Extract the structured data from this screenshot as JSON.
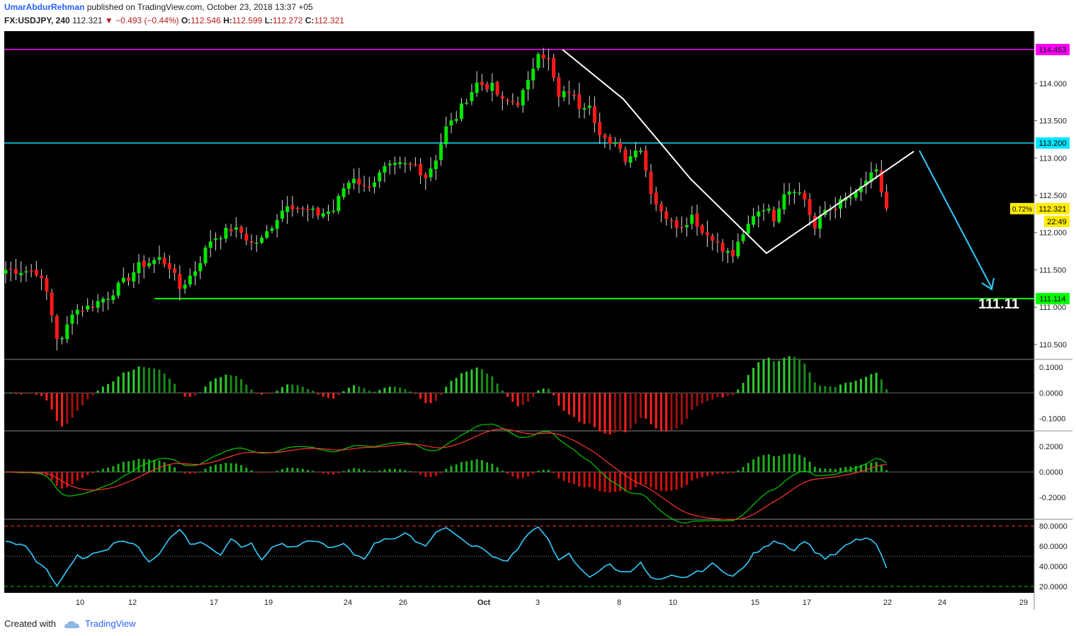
{
  "header": {
    "author": "UmarAbdurRehman",
    "published_text": "published on TradingView.com, October 23, 2018 13:37 +05",
    "symbol": "FX:USDJPY, 240",
    "last": "112.321",
    "change": "−0.493 (−0.44%)",
    "o_label": "O:",
    "o_val": "112.546",
    "h_label": "H:",
    "h_val": "112.599",
    "l_label": "L:",
    "l_val": "112.272",
    "c_label": "C:",
    "c_val": "112.321"
  },
  "footer": {
    "created_with": "Created with",
    "brand": "TradingView"
  },
  "colors": {
    "background": "#000000",
    "bull": "#00e600",
    "bear": "#ff1a1a",
    "resistance": "#ff00ff",
    "level_cyan": "#00e5ff",
    "target_green": "#00ff00",
    "histo_bull": "#1fae1f",
    "histo_bear": "#d01010",
    "rsi_line": "#33ccff",
    "rsi_band": "#ff3333",
    "rsi_low": "#00cc00"
  },
  "chart_data": [
    {
      "type": "candlestick",
      "title": "FX:USDJPY, 240",
      "ylim": [
        110.3,
        114.7
      ],
      "price_ticks": [
        "114.000",
        "113.500",
        "113.000",
        "112.500",
        "112.000",
        "111.500",
        "111.000",
        "110.500"
      ],
      "x_ticks": [
        "10",
        "12",
        "17",
        "19",
        "24",
        "26",
        "Oct",
        "3",
        "8",
        "10",
        "15",
        "17",
        "22",
        "24",
        "29"
      ],
      "levels": [
        {
          "value": 114.453,
          "label": "114.453",
          "color": "#ff00ff"
        },
        {
          "value": 113.2,
          "label": "113.200",
          "color": "#00e5ff"
        },
        {
          "value": 111.114,
          "label": "111.114",
          "color": "#00ff00"
        }
      ],
      "current": {
        "price": "112.321",
        "pct": "0.72%",
        "countdown": "22:49"
      },
      "target_label": "111.11",
      "close_anchors": [
        [
          0,
          111.5
        ],
        [
          6,
          111.48
        ],
        [
          8,
          111.2
        ],
        [
          10,
          110.6
        ],
        [
          11,
          110.55
        ],
        [
          13,
          110.95
        ],
        [
          16,
          111.0
        ],
        [
          20,
          111.15
        ],
        [
          24,
          111.4
        ],
        [
          26,
          111.55
        ],
        [
          30,
          111.65
        ],
        [
          32,
          111.55
        ],
        [
          34,
          111.25
        ],
        [
          37,
          111.5
        ],
        [
          40,
          111.9
        ],
        [
          44,
          112.05
        ],
        [
          46,
          112.0
        ],
        [
          48,
          111.85
        ],
        [
          50,
          111.9
        ],
        [
          52,
          112.1
        ],
        [
          55,
          112.4
        ],
        [
          58,
          112.3
        ],
        [
          61,
          112.25
        ],
        [
          64,
          112.3
        ],
        [
          66,
          112.6
        ],
        [
          68,
          112.75
        ],
        [
          70,
          112.6
        ],
        [
          72,
          112.7
        ],
        [
          74,
          112.85
        ],
        [
          77,
          112.9
        ],
        [
          80,
          112.9
        ],
        [
          82,
          112.75
        ],
        [
          84,
          113.0
        ],
        [
          86,
          113.4
        ],
        [
          88,
          113.55
        ],
        [
          90,
          113.8
        ],
        [
          92,
          114.0
        ],
        [
          95,
          113.95
        ],
        [
          97,
          113.75
        ],
        [
          100,
          113.75
        ],
        [
          102,
          114.0
        ],
        [
          104,
          114.45
        ],
        [
          106,
          114.3
        ],
        [
          108,
          113.8
        ],
        [
          110,
          113.9
        ],
        [
          112,
          113.7
        ],
        [
          114,
          113.75
        ],
        [
          116,
          113.3
        ],
        [
          118,
          113.15
        ],
        [
          119,
          113.25
        ],
        [
          121,
          113.0
        ],
        [
          124,
          113.15
        ],
        [
          126,
          112.55
        ],
        [
          128,
          112.25
        ],
        [
          130,
          112.2
        ],
        [
          132,
          112.05
        ],
        [
          134,
          112.25
        ],
        [
          136,
          112.0
        ],
        [
          138,
          111.95
        ],
        [
          140,
          111.75
        ],
        [
          142,
          111.7
        ],
        [
          144,
          111.95
        ],
        [
          146,
          112.25
        ],
        [
          148,
          112.35
        ],
        [
          150,
          112.2
        ],
        [
          152,
          112.55
        ],
        [
          154,
          112.6
        ],
        [
          156,
          112.45
        ],
        [
          158,
          112.05
        ],
        [
          160,
          112.3
        ],
        [
          162,
          112.35
        ],
        [
          164,
          112.45
        ],
        [
          166,
          112.5
        ],
        [
          168,
          112.7
        ],
        [
          170,
          112.8
        ],
        [
          171,
          112.55
        ],
        [
          172,
          112.32
        ]
      ]
    },
    {
      "type": "histogram",
      "title": "",
      "ylim": [
        -0.14,
        0.12
      ],
      "ticks": [
        "0.1000",
        "0.0000",
        "-0.1000"
      ]
    },
    {
      "type": "histogram+line",
      "title": "",
      "ylim": [
        -0.36,
        0.3
      ],
      "ticks": [
        "0.2000",
        "0.0000",
        "-0.2000"
      ]
    },
    {
      "type": "line",
      "title": "",
      "ylim": [
        15,
        84
      ],
      "ticks": [
        "80.0000",
        "60.0000",
        "40.0000",
        "20.0000"
      ],
      "bands": {
        "upper": 80,
        "mid": 50,
        "lower": 20
      },
      "value_anchors": [
        [
          0,
          64
        ],
        [
          4,
          60
        ],
        [
          6,
          45
        ],
        [
          8,
          38
        ],
        [
          9,
          28
        ],
        [
          10,
          21
        ],
        [
          12,
          35
        ],
        [
          14,
          50
        ],
        [
          16,
          48
        ],
        [
          18,
          55
        ],
        [
          20,
          58
        ],
        [
          22,
          66
        ],
        [
          24,
          64
        ],
        [
          26,
          58
        ],
        [
          28,
          45
        ],
        [
          30,
          52
        ],
        [
          32,
          68
        ],
        [
          34,
          78
        ],
        [
          36,
          62
        ],
        [
          38,
          64
        ],
        [
          40,
          58
        ],
        [
          42,
          52
        ],
        [
          44,
          68
        ],
        [
          46,
          60
        ],
        [
          48,
          64
        ],
        [
          50,
          45
        ],
        [
          52,
          60
        ],
        [
          54,
          62
        ],
        [
          56,
          58
        ],
        [
          58,
          62
        ],
        [
          60,
          66
        ],
        [
          62,
          62
        ],
        [
          64,
          58
        ],
        [
          66,
          62
        ],
        [
          68,
          52
        ],
        [
          70,
          48
        ],
        [
          72,
          62
        ],
        [
          74,
          68
        ],
        [
          76,
          68
        ],
        [
          78,
          72
        ],
        [
          80,
          66
        ],
        [
          82,
          60
        ],
        [
          84,
          75
        ],
        [
          86,
          78
        ],
        [
          88,
          72
        ],
        [
          90,
          62
        ],
        [
          92,
          60
        ],
        [
          94,
          54
        ],
        [
          96,
          48
        ],
        [
          98,
          46
        ],
        [
          100,
          58
        ],
        [
          102,
          72
        ],
        [
          104,
          78
        ],
        [
          106,
          68
        ],
        [
          108,
          45
        ],
        [
          110,
          52
        ],
        [
          112,
          38
        ],
        [
          114,
          30
        ],
        [
          116,
          36
        ],
        [
          118,
          42
        ],
        [
          120,
          34
        ],
        [
          122,
          36
        ],
        [
          124,
          43
        ],
        [
          126,
          28
        ],
        [
          128,
          26
        ],
        [
          130,
          30
        ],
        [
          132,
          28
        ],
        [
          134,
          32
        ],
        [
          136,
          36
        ],
        [
          138,
          42
        ],
        [
          140,
          36
        ],
        [
          142,
          30
        ],
        [
          144,
          38
        ],
        [
          146,
          52
        ],
        [
          148,
          58
        ],
        [
          150,
          66
        ],
        [
          152,
          62
        ],
        [
          154,
          56
        ],
        [
          156,
          66
        ],
        [
          158,
          55
        ],
        [
          160,
          48
        ],
        [
          162,
          52
        ],
        [
          164,
          60
        ],
        [
          166,
          66
        ],
        [
          168,
          68
        ],
        [
          170,
          62
        ],
        [
          172,
          38
        ]
      ]
    }
  ]
}
